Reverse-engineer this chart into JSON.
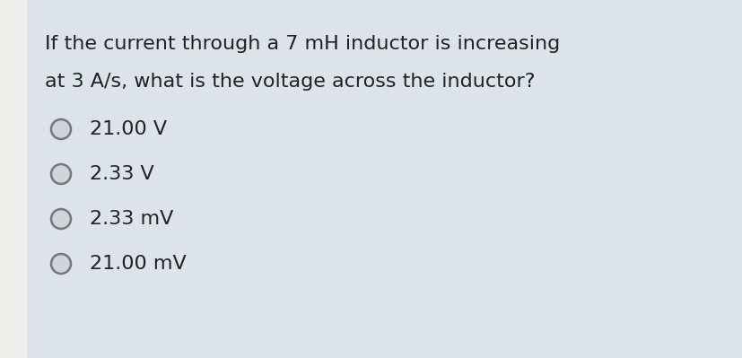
{
  "background_color": "#dde3ea",
  "left_strip_color": "#eeeeea",
  "question_line1": "If the current through a 7 mH inductor is increasing",
  "question_line2": "at 3 A/s, what is the voltage across the inductor?",
  "options": [
    "21.00 V",
    "2.33 V",
    "2.33 mV",
    "21.00 mV"
  ],
  "text_color": "#222222",
  "circle_edge_color": "#777777",
  "circle_face_color": "#cdd4dc",
  "question_fontsize": 16,
  "option_fontsize": 16,
  "figsize": [
    8.28,
    3.99
  ],
  "dpi": 100
}
